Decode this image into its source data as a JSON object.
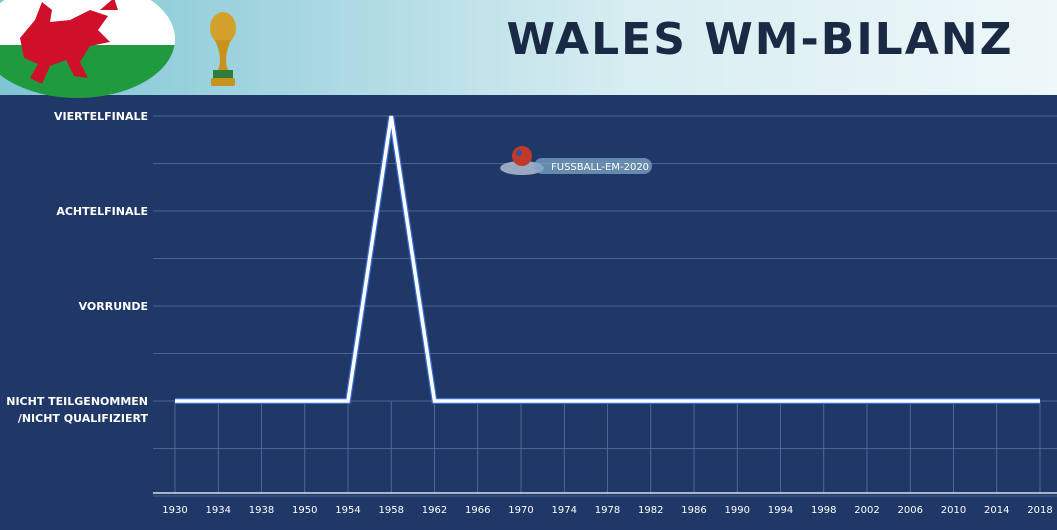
{
  "chart_data": {
    "type": "line",
    "title": "WALES WM-BILANZ",
    "categories": [
      "1930",
      "1934",
      "1938",
      "1950",
      "1954",
      "1958",
      "1962",
      "1966",
      "1970",
      "1974",
      "1978",
      "1982",
      "1986",
      "1990",
      "1994",
      "1998",
      "2002",
      "2006",
      "2010",
      "2014",
      "2018"
    ],
    "y_levels": [
      "Nicht Teilgenommen /Nicht Qualifiziert",
      "Vorrunde",
      "Achtelfinale",
      "Viertelfinale"
    ],
    "y_tick_labels": [
      {
        "lines": [
          "NICHT TEILGENOMMEN",
          "/NICHT QUALIFIZIERT"
        ]
      },
      {
        "lines": [
          "VORRUNDE"
        ]
      },
      {
        "lines": [
          "ACHTELFINALE"
        ]
      },
      {
        "lines": [
          "VIERTELFINALE"
        ]
      }
    ],
    "series": [
      {
        "values": [
          0,
          0,
          0,
          0,
          0,
          3,
          0,
          0,
          0,
          0,
          0,
          0,
          0,
          0,
          0,
          0,
          0,
          0,
          0,
          0,
          0
        ]
      }
    ],
    "ylim": [
      -1,
      3.2
    ],
    "grid": true,
    "line_color": "#ffffff",
    "background_color": "#1f3868"
  },
  "watermark": {
    "text": "FUSSBALL-EM-2020"
  },
  "colors": {
    "flag_green": "#1f9a3e",
    "dragon_red": "#d0102a"
  }
}
